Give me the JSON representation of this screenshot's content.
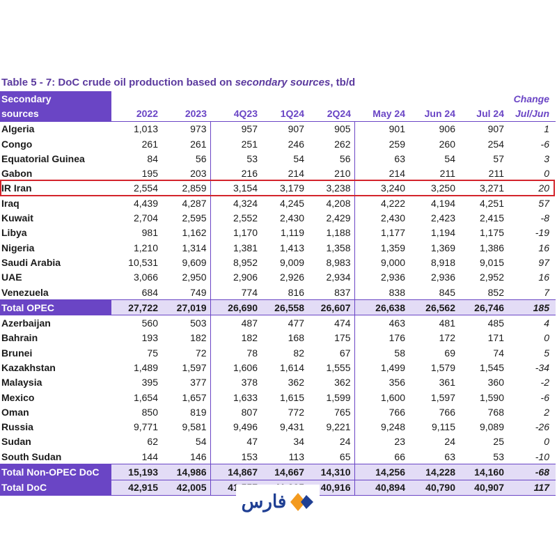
{
  "title": {
    "prefix": "Table 5 - 7: DoC crude oil production based on ",
    "italic": "secondary sources",
    "suffix": ", tb/d"
  },
  "header": {
    "label_line1": "Secondary",
    "label_line2": "sources",
    "columns": [
      "2022",
      "2023",
      "4Q23",
      "1Q24",
      "2Q24",
      "May 24",
      "Jun 24",
      "Jul 24"
    ],
    "change_line1": "Change",
    "change_line2": "Jul/Jun"
  },
  "rows": [
    {
      "name": "Algeria",
      "v": [
        "1,013",
        "973",
        "957",
        "907",
        "905",
        "901",
        "906",
        "907"
      ],
      "chg": "1"
    },
    {
      "name": "Congo",
      "v": [
        "261",
        "261",
        "251",
        "246",
        "262",
        "259",
        "260",
        "254"
      ],
      "chg": "-6"
    },
    {
      "name": "Equatorial Guinea",
      "v": [
        "84",
        "56",
        "53",
        "54",
        "56",
        "63",
        "54",
        "57"
      ],
      "chg": "3"
    },
    {
      "name": "Gabon",
      "v": [
        "195",
        "203",
        "216",
        "214",
        "210",
        "214",
        "211",
        "211"
      ],
      "chg": "0"
    },
    {
      "name": "IR Iran",
      "v": [
        "2,554",
        "2,859",
        "3,154",
        "3,179",
        "3,238",
        "3,240",
        "3,250",
        "3,271"
      ],
      "chg": "20"
    },
    {
      "name": "Iraq",
      "v": [
        "4,439",
        "4,287",
        "4,324",
        "4,245",
        "4,208",
        "4,222",
        "4,194",
        "4,251"
      ],
      "chg": "57"
    },
    {
      "name": "Kuwait",
      "v": [
        "2,704",
        "2,595",
        "2,552",
        "2,430",
        "2,429",
        "2,430",
        "2,423",
        "2,415"
      ],
      "chg": "-8"
    },
    {
      "name": "Libya",
      "v": [
        "981",
        "1,162",
        "1,170",
        "1,119",
        "1,188",
        "1,177",
        "1,194",
        "1,175"
      ],
      "chg": "-19"
    },
    {
      "name": "Nigeria",
      "v": [
        "1,210",
        "1,314",
        "1,381",
        "1,413",
        "1,358",
        "1,359",
        "1,369",
        "1,386"
      ],
      "chg": "16"
    },
    {
      "name": "Saudi Arabia",
      "v": [
        "10,531",
        "9,609",
        "8,952",
        "9,009",
        "8,983",
        "9,000",
        "8,918",
        "9,015"
      ],
      "chg": "97"
    },
    {
      "name": "UAE",
      "v": [
        "3,066",
        "2,950",
        "2,906",
        "2,926",
        "2,934",
        "2,936",
        "2,936",
        "2,952"
      ],
      "chg": "16"
    },
    {
      "name": "Venezuela",
      "v": [
        "684",
        "749",
        "774",
        "816",
        "837",
        "838",
        "845",
        "852"
      ],
      "chg": "7"
    },
    {
      "name": "Total  OPEC",
      "total": true,
      "v": [
        "27,722",
        "27,019",
        "26,690",
        "26,558",
        "26,607",
        "26,638",
        "26,562",
        "26,746"
      ],
      "chg": "185"
    },
    {
      "name": "Azerbaijan",
      "v": [
        "560",
        "503",
        "487",
        "477",
        "474",
        "463",
        "481",
        "485"
      ],
      "chg": "4"
    },
    {
      "name": "Bahrain",
      "v": [
        "193",
        "182",
        "182",
        "168",
        "175",
        "176",
        "172",
        "171"
      ],
      "chg": "0"
    },
    {
      "name": "Brunei",
      "v": [
        "75",
        "72",
        "78",
        "82",
        "67",
        "58",
        "69",
        "74"
      ],
      "chg": "5"
    },
    {
      "name": "Kazakhstan",
      "v": [
        "1,489",
        "1,597",
        "1,606",
        "1,614",
        "1,555",
        "1,499",
        "1,579",
        "1,545"
      ],
      "chg": "-34"
    },
    {
      "name": "Malaysia",
      "v": [
        "395",
        "377",
        "378",
        "362",
        "362",
        "356",
        "361",
        "360"
      ],
      "chg": "-2"
    },
    {
      "name": "Mexico",
      "v": [
        "1,654",
        "1,657",
        "1,633",
        "1,615",
        "1,599",
        "1,600",
        "1,597",
        "1,590"
      ],
      "chg": "-6"
    },
    {
      "name": "Oman",
      "v": [
        "850",
        "819",
        "807",
        "772",
        "765",
        "766",
        "766",
        "768"
      ],
      "chg": "2"
    },
    {
      "name": "Russia",
      "v": [
        "9,771",
        "9,581",
        "9,496",
        "9,431",
        "9,221",
        "9,248",
        "9,115",
        "9,089"
      ],
      "chg": "-26"
    },
    {
      "name": "Sudan",
      "v": [
        "62",
        "54",
        "47",
        "34",
        "24",
        "23",
        "24",
        "25"
      ],
      "chg": "0"
    },
    {
      "name": "South Sudan",
      "v": [
        "144",
        "146",
        "153",
        "113",
        "65",
        "66",
        "63",
        "53"
      ],
      "chg": "-10"
    },
    {
      "name": "Total Non-OPEC DoC",
      "total": true,
      "v": [
        "15,193",
        "14,986",
        "14,867",
        "14,667",
        "14,310",
        "14,256",
        "14,228",
        "14,160"
      ],
      "chg": "-68"
    },
    {
      "name": "Total DoC",
      "total": true,
      "v": [
        "42,915",
        "42,005",
        "41,557",
        "41,225",
        "40,916",
        "40,894",
        "40,790",
        "40,907"
      ],
      "chg": "117"
    }
  ],
  "highlight_row": "IR Iran",
  "colors": {
    "accent": "#6a45c5",
    "highlight": "#d3242b",
    "total_bg": "#e3dcf6",
    "logo_blue": "#1f3f93",
    "logo_orange": "#f39a1e"
  },
  "logo": {
    "text": "فارس",
    "icon": "fars-diamond-icon"
  }
}
